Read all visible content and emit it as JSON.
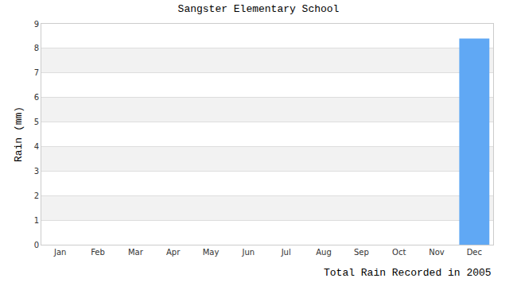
{
  "chart_data": {
    "type": "bar",
    "title": "Sangster Elementary School",
    "x_label": "Total Rain Recorded in 2005",
    "y_label": "Rain (mm)",
    "categories": [
      "Jan",
      "Feb",
      "Mar",
      "Apr",
      "May",
      "Jun",
      "Jul",
      "Aug",
      "Sep",
      "Oct",
      "Nov",
      "Dec"
    ],
    "values": [
      0,
      0,
      0,
      0,
      0,
      0,
      0,
      0,
      0,
      0,
      0,
      8.4
    ],
    "color": "#60a8f4",
    "ylim": [
      0,
      9
    ],
    "yticks": [
      0,
      1,
      2,
      3,
      4,
      5,
      6,
      7,
      8,
      9
    ],
    "grid": true
  }
}
